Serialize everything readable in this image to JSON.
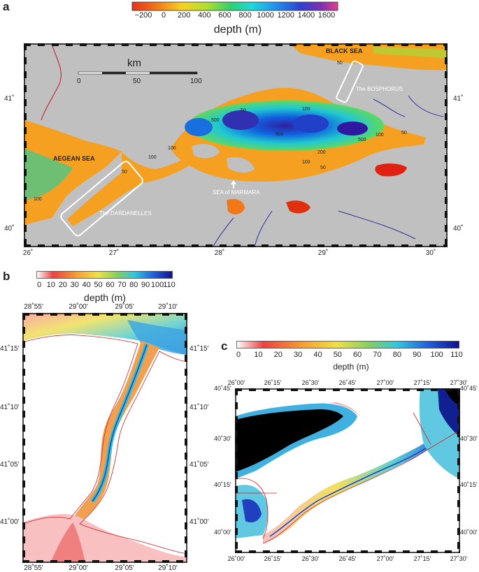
{
  "panel_a": {
    "letter": "a",
    "colorbar": {
      "ticks": [
        "−200",
        "0",
        "200",
        "400",
        "600",
        "800",
        "1000",
        "1200",
        "1400",
        "1600"
      ],
      "title": "depth (m)"
    },
    "scalebar": {
      "unit": "km",
      "ticks": [
        "0",
        "50",
        "100"
      ]
    },
    "lon_ticks": [
      "26˚",
      "27˚",
      "28˚",
      "29˚",
      "30˚"
    ],
    "lat_ticks": [
      "41˚",
      "40˚"
    ],
    "labels": {
      "black_sea": "BLACK SEA",
      "aegean_sea": "AEGEAN SEA",
      "bosphorus": "The BOSPHORUS",
      "dardanelles": "The DARDANELLES",
      "marmara": "SEA of MARMARA"
    },
    "contours": [
      "50",
      "100",
      "500",
      "500",
      "100",
      "50",
      "100",
      "200",
      "100",
      "50",
      "50",
      "100",
      "50",
      "500",
      "100"
    ]
  },
  "panel_b": {
    "letter": "b",
    "colorbar": {
      "ticks": [
        "0",
        "10",
        "20",
        "30",
        "40",
        "50",
        "60",
        "70",
        "80",
        "90",
        "100",
        "110"
      ],
      "title": "depth (m)"
    },
    "lon_ticks": [
      "28˚55'",
      "29˚00'",
      "29˚05'",
      "29˚10'"
    ],
    "lat_ticks": [
      "41˚15'",
      "41˚10'",
      "41˚05'",
      "41˚00'"
    ]
  },
  "panel_c": {
    "letter": "c",
    "colorbar": {
      "ticks": [
        "0",
        "10",
        "20",
        "30",
        "40",
        "50",
        "60",
        "70",
        "80",
        "90",
        "100",
        "110"
      ],
      "title": "depth (m)"
    },
    "lon_ticks": [
      "26˚00'",
      "26˚15'",
      "26˚30'",
      "26˚45'",
      "27˚00'",
      "27˚15'",
      "27˚30'"
    ],
    "lat_ticks": [
      "40˚45'",
      "40˚30'",
      "40˚15'",
      "40˚00'"
    ]
  },
  "colors": {
    "land": "#c0c0c0",
    "shelf": "#f5a020",
    "deep": "#2040d0",
    "coast": "#d02020"
  }
}
